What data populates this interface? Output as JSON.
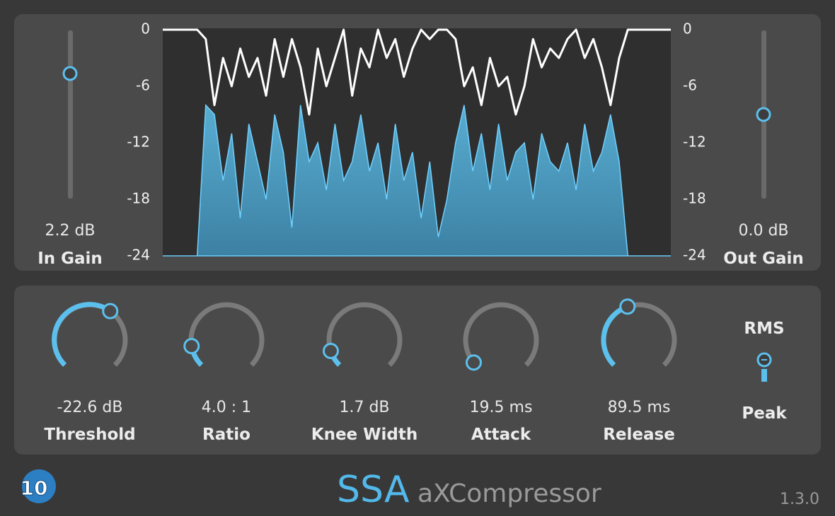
{
  "meter": {
    "scale": [
      0,
      -6,
      -12,
      -18,
      -24
    ],
    "level_db": [
      -24,
      -24,
      -24,
      -24,
      -24,
      -8,
      -9,
      -16,
      -11,
      -20,
      -10,
      -14,
      -18,
      -9,
      -13,
      -21,
      -8,
      -14,
      -12,
      -17,
      -10,
      -16,
      -14,
      -9,
      -15,
      -12,
      -18,
      -10,
      -16,
      -13,
      -20,
      -14,
      -22,
      -18,
      -12,
      -8,
      -15,
      -11,
      -17,
      -10,
      -16,
      -13,
      -12,
      -18,
      -11,
      -14,
      -15,
      -12,
      -17,
      -10,
      -15,
      -13,
      -9,
      -14,
      -24,
      -24,
      -24,
      -24,
      -24,
      -24
    ],
    "gain_db": [
      0,
      0,
      0,
      0,
      0,
      -1,
      -8,
      -3,
      -6,
      -2,
      -5,
      -3,
      -7,
      -1,
      -5,
      -1,
      -4,
      -9,
      -2,
      -6,
      -3,
      0,
      -7,
      -2,
      -4,
      0,
      -3,
      -1,
      -5,
      -2,
      0,
      -1,
      0,
      0,
      -1,
      -6,
      -4,
      -8,
      -3,
      -6,
      -5,
      -9,
      -6,
      -1,
      -4,
      -2,
      -3,
      -1,
      0,
      -3,
      -1,
      -4,
      -8,
      -3,
      0,
      0,
      0,
      0,
      0,
      0
    ]
  },
  "in_gain": {
    "value": "2.2 dB",
    "label": "In Gain"
  },
  "out_gain": {
    "value": "0.0 dB",
    "label": "Out Gain"
  },
  "knobs": [
    {
      "value": "-22.6 dB",
      "label": "Threshold"
    },
    {
      "value": "4.0 : 1",
      "label": "Ratio"
    },
    {
      "value": "1.7 dB",
      "label": "Knee Width"
    },
    {
      "value": "19.5 ms",
      "label": "Attack"
    },
    {
      "value": "89.5 ms",
      "label": "Release"
    }
  ],
  "detector": {
    "top": "RMS",
    "bottom": "Peak"
  },
  "brand": {
    "logo": "10",
    "name": "SSA",
    "product": "aXCompressor",
    "version": "1.3.0"
  }
}
